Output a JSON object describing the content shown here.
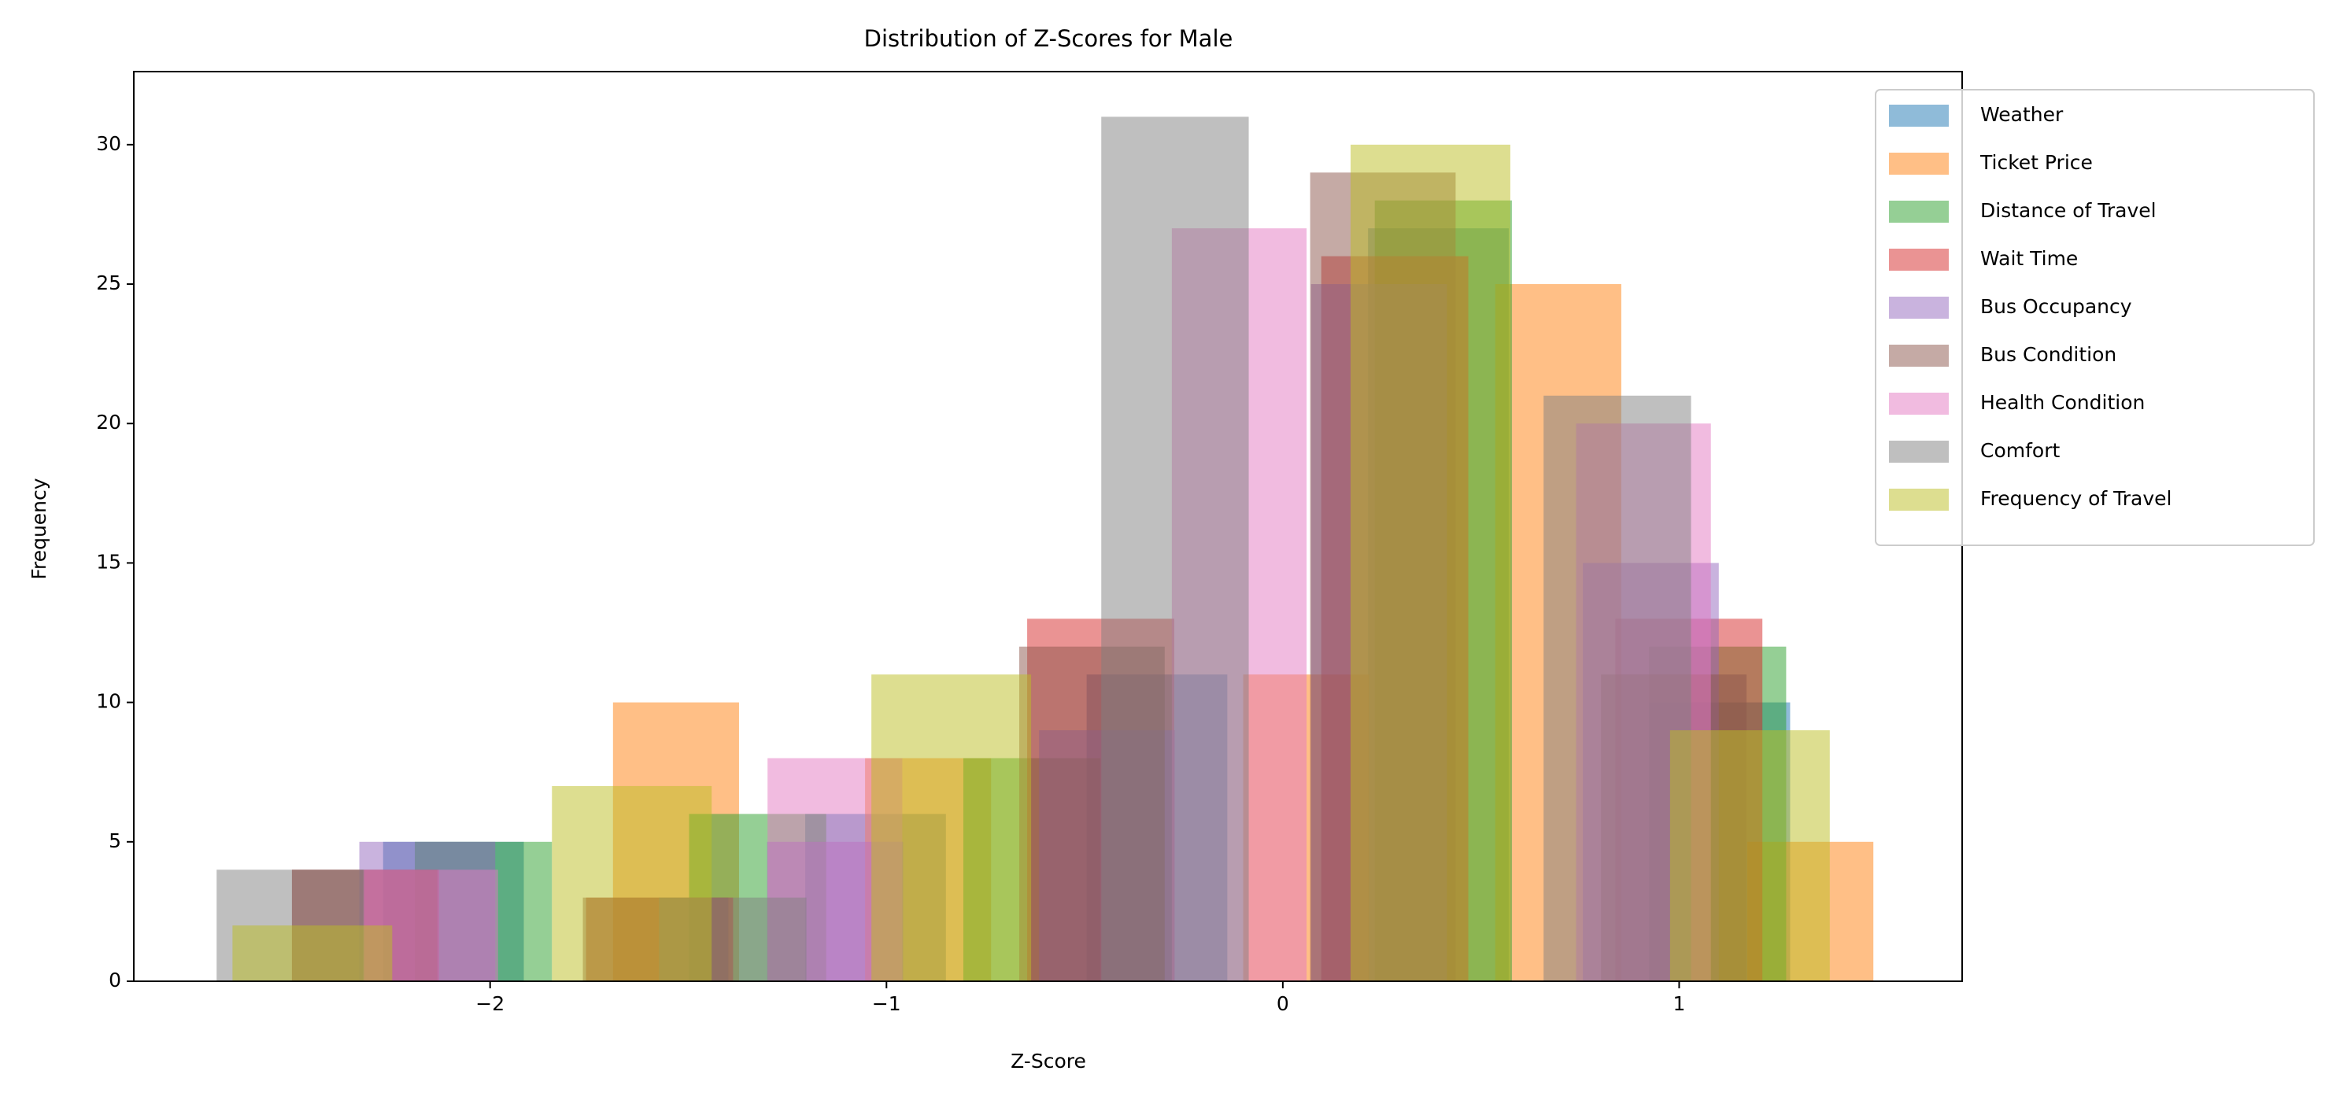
{
  "chart_data": {
    "type": "histogram",
    "title": "Distribution of Z-Scores for Male",
    "x_label": "Z-Score",
    "y_label": "Frequency",
    "alpha": 0.5,
    "xlim": [
      -2.899,
      1.714
    ],
    "ylim": [
      0,
      32.62
    ],
    "xticks": [
      {
        "value": -2,
        "label": "−2"
      },
      {
        "value": -1,
        "label": "−1"
      },
      0,
      1
    ],
    "yticks": [
      0,
      5,
      10,
      15,
      20,
      25,
      30
    ],
    "series": [
      {
        "name": "Weather",
        "color": "#1f77b4",
        "bins": [
          -2.27,
          -1.915,
          -1.56,
          -1.205,
          -0.85,
          -0.495,
          -0.14,
          0.215,
          0.57,
          0.925,
          1.28
        ],
        "values": [
          5,
          0,
          0,
          6,
          0,
          11,
          0,
          27,
          0,
          10
        ]
      },
      {
        "name": "Ticket Price",
        "color": "#ff7f0e",
        "bins": [
          -1.69,
          -1.372,
          -1.054,
          -0.736,
          -0.418,
          -0.1,
          0.218,
          0.536,
          0.854,
          1.172,
          1.49
        ],
        "values": [
          10,
          0,
          8,
          0,
          0,
          11,
          0,
          25,
          0,
          5
        ]
      },
      {
        "name": "Distance of Travel",
        "color": "#2ca02c",
        "bins": [
          -2.19,
          -1.844,
          -1.498,
          -1.152,
          -0.806,
          -0.46,
          -0.114,
          0.232,
          0.578,
          0.924,
          1.27
        ],
        "values": [
          5,
          0,
          6,
          0,
          8,
          0,
          0,
          28,
          0,
          12
        ]
      },
      {
        "name": "Wait Time",
        "color": "#d62728",
        "bins": [
          -2.5,
          -2.129,
          -1.758,
          -1.387,
          -1.016,
          -0.645,
          -0.274,
          0.097,
          0.468,
          0.839,
          1.21
        ],
        "values": [
          4,
          0,
          3,
          0,
          0,
          13,
          0,
          26,
          0,
          13
        ]
      },
      {
        "name": "Bus Occupancy",
        "color": "#9467bd",
        "bins": [
          -2.33,
          -1.987,
          -1.644,
          -1.301,
          -0.958,
          -0.615,
          -0.272,
          0.071,
          0.414,
          0.757,
          1.1
        ],
        "values": [
          5,
          0,
          0,
          5,
          0,
          9,
          0,
          25,
          0,
          15
        ]
      },
      {
        "name": "Bus Condition",
        "color": "#8c564b",
        "bins": [
          -2.5,
          -2.133,
          -1.766,
          -1.399,
          -1.032,
          -0.665,
          -0.298,
          0.069,
          0.436,
          0.803,
          1.17
        ],
        "values": [
          4,
          0,
          3,
          0,
          0,
          12,
          0,
          29,
          0,
          11
        ]
      },
      {
        "name": "Health Condition",
        "color": "#e377c2",
        "bins": [
          -2.32,
          -1.98,
          -1.64,
          -1.3,
          -0.96,
          -0.62,
          -0.28,
          0.06,
          0.4,
          0.74,
          1.08
        ],
        "values": [
          4,
          0,
          0,
          8,
          0,
          0,
          27,
          0,
          0,
          20
        ]
      },
      {
        "name": "Comfort",
        "color": "#7f7f7f",
        "bins": [
          -2.69,
          -2.318,
          -1.946,
          -1.574,
          -1.202,
          -0.83,
          -0.458,
          -0.086,
          0.286,
          0.658,
          1.03
        ],
        "values": [
          4,
          0,
          0,
          3,
          0,
          0,
          31,
          0,
          0,
          21
        ]
      },
      {
        "name": "Frequency of Travel",
        "color": "#bcbd22",
        "bins": [
          -2.65,
          -2.247,
          -1.844,
          -1.441,
          -1.038,
          -0.635,
          -0.232,
          0.171,
          0.574,
          0.977,
          1.38
        ],
        "values": [
          2,
          0,
          7,
          0,
          11,
          0,
          0,
          30,
          0,
          9
        ]
      }
    ]
  }
}
